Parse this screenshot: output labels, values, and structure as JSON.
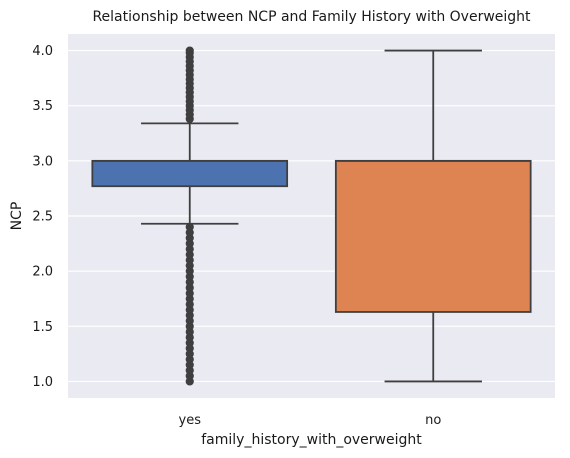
{
  "chart_data": {
    "type": "box",
    "title": "Relationship between NCP and Family History with Overweight",
    "xlabel": "family_history_with_overweight",
    "ylabel": "NCP",
    "ylim": [
      0.85,
      4.15
    ],
    "yticks": [
      "1.0",
      "1.5",
      "2.0",
      "2.5",
      "3.0",
      "3.5",
      "4.0"
    ],
    "categories": [
      "yes",
      "no"
    ],
    "grid": true,
    "boxes": [
      {
        "category": "yes",
        "color": "#4c72b0",
        "whisker_low": 2.43,
        "q1": 2.77,
        "median": 3.0,
        "q3": 3.0,
        "whisker_high": 3.34,
        "outliers": [
          1.0,
          1.05,
          1.1,
          1.15,
          1.2,
          1.25,
          1.3,
          1.35,
          1.4,
          1.45,
          1.5,
          1.55,
          1.6,
          1.65,
          1.7,
          1.75,
          1.8,
          1.85,
          1.9,
          1.95,
          2.0,
          2.05,
          2.1,
          2.15,
          2.2,
          2.25,
          2.3,
          2.35,
          2.4,
          3.38,
          3.42,
          3.46,
          3.5,
          3.54,
          3.58,
          3.62,
          3.66,
          3.7,
          3.74,
          3.78,
          3.82,
          3.86,
          3.9,
          3.94,
          3.98,
          4.0
        ]
      },
      {
        "category": "no",
        "color": "#dd8452",
        "whisker_low": 1.0,
        "q1": 1.63,
        "median": 3.0,
        "q3": 3.0,
        "whisker_high": 4.0,
        "outliers": []
      }
    ]
  }
}
